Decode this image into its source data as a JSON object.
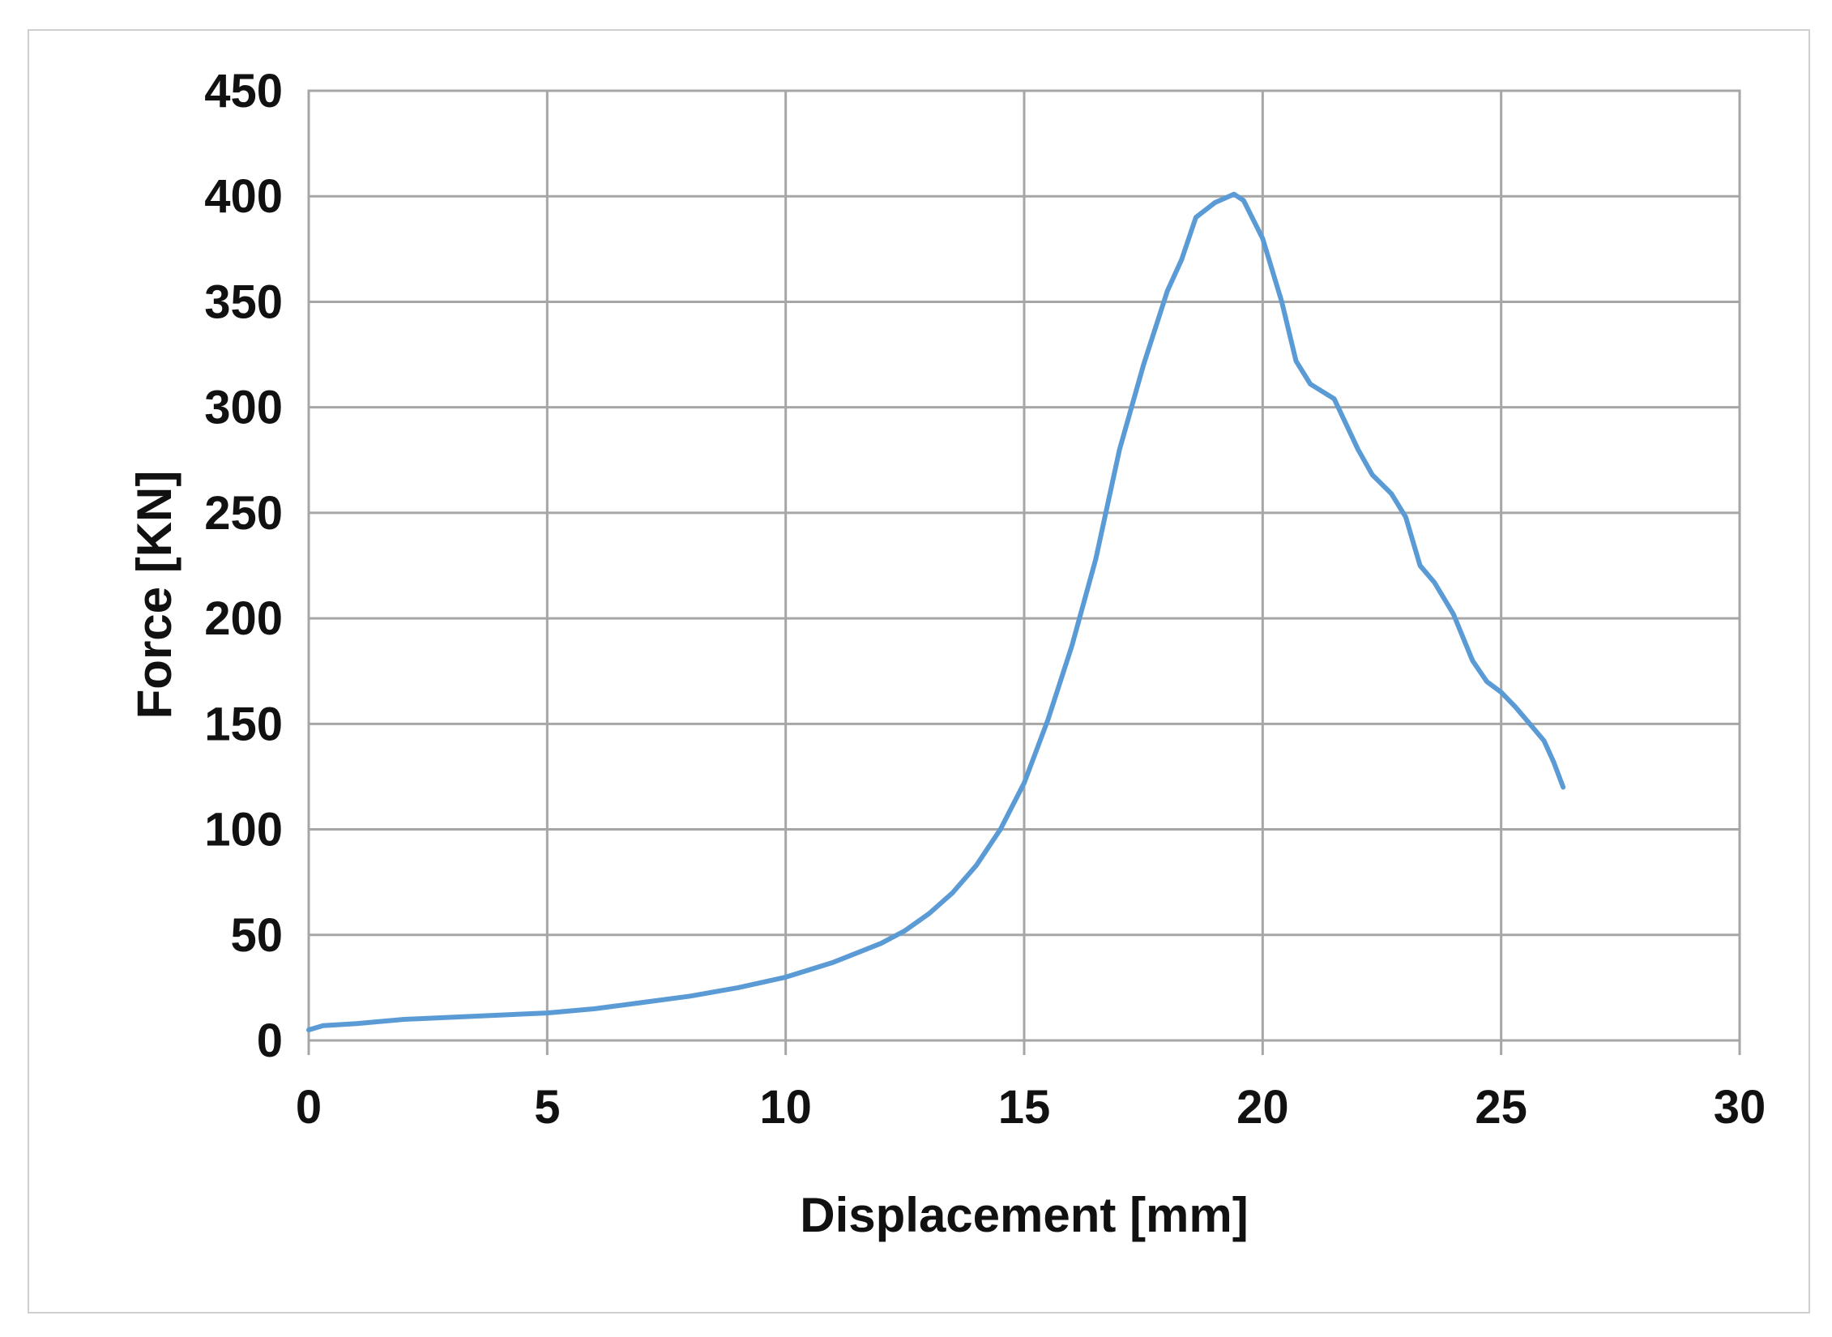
{
  "chart_data": {
    "type": "line",
    "xlabel": "Displacement [mm]",
    "ylabel": "Force [KN]",
    "xlim": [
      0,
      30
    ],
    "ylim": [
      0,
      450
    ],
    "x_ticks": [
      "0",
      "5",
      "10",
      "15",
      "20",
      "25",
      "30"
    ],
    "y_ticks": [
      "0",
      "50",
      "100",
      "150",
      "200",
      "250",
      "300",
      "350",
      "400",
      "450"
    ],
    "grid": true,
    "legend": "none",
    "series": [
      {
        "color": "#5b9bd5",
        "x": [
          0,
          0.3,
          1,
          2,
          3,
          4,
          5,
          6,
          7,
          8,
          9,
          10,
          11,
          12,
          12.5,
          13,
          13.5,
          14,
          14.5,
          15,
          15.5,
          16,
          16.5,
          17,
          17.5,
          18,
          18.3,
          18.6,
          19,
          19.4,
          19.6,
          20,
          20.4,
          20.7,
          21,
          21.5,
          22,
          22.3,
          22.7,
          23,
          23.3,
          23.6,
          24,
          24.4,
          24.7,
          25,
          25.3,
          25.6,
          25.9,
          26.1,
          26.3
        ],
        "y": [
          5,
          7,
          8,
          10,
          11,
          12,
          13,
          15,
          18,
          21,
          25,
          30,
          37,
          46,
          52,
          60,
          70,
          83,
          100,
          122,
          152,
          187,
          228,
          280,
          320,
          355,
          370,
          390,
          397,
          401,
          398,
          380,
          350,
          322,
          311,
          304,
          280,
          268,
          259,
          248,
          225,
          217,
          202,
          180,
          170,
          165,
          158,
          150,
          142,
          132,
          120
        ]
      }
    ]
  }
}
